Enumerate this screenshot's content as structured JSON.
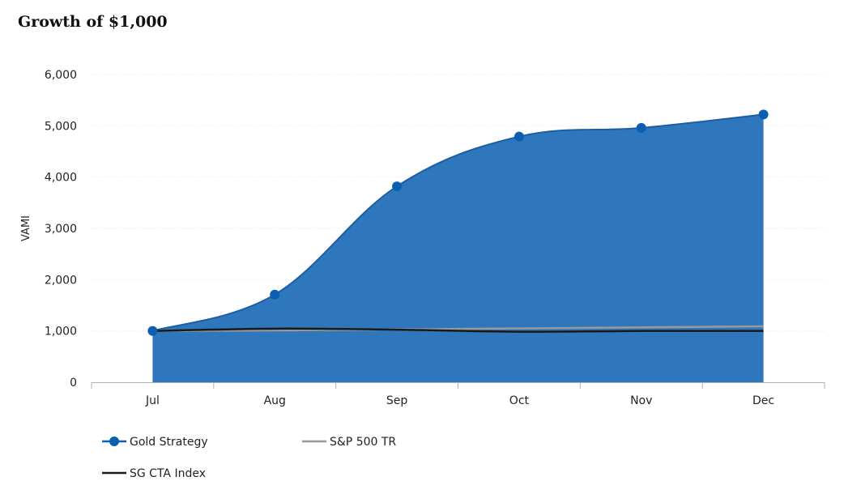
{
  "chart_data": {
    "type": "area",
    "title": "Growth of $1,000",
    "xlabel": "",
    "ylabel": "VAMI",
    "categories": [
      "Jul",
      "Aug",
      "Sep",
      "Oct",
      "Nov",
      "Dec"
    ],
    "ylim": [
      0,
      6000
    ],
    "yticks": [
      0,
      1000,
      2000,
      3000,
      4000,
      5000,
      6000
    ],
    "ytick_labels": [
      "0",
      "1,000",
      "2,000",
      "3,000",
      "4,000",
      "5,000",
      "6,000"
    ],
    "grid": true,
    "legend_position": "bottom-left",
    "series": [
      {
        "name": "Gold Strategy",
        "type": "area",
        "color": "#2e77bc",
        "marker_color": "#0b5fb0",
        "values": [
          1000,
          1710,
          3820,
          4790,
          4960,
          5220
        ]
      },
      {
        "name": "S&P 500 TR",
        "type": "line",
        "color": "#999999",
        "values": [
          1000,
          1010,
          1030,
          1050,
          1070,
          1090
        ]
      },
      {
        "name": "SG CTA Index",
        "type": "line",
        "color": "#1a1a1a",
        "values": [
          1000,
          1045,
          1025,
          985,
          1000,
          1000
        ]
      }
    ]
  }
}
